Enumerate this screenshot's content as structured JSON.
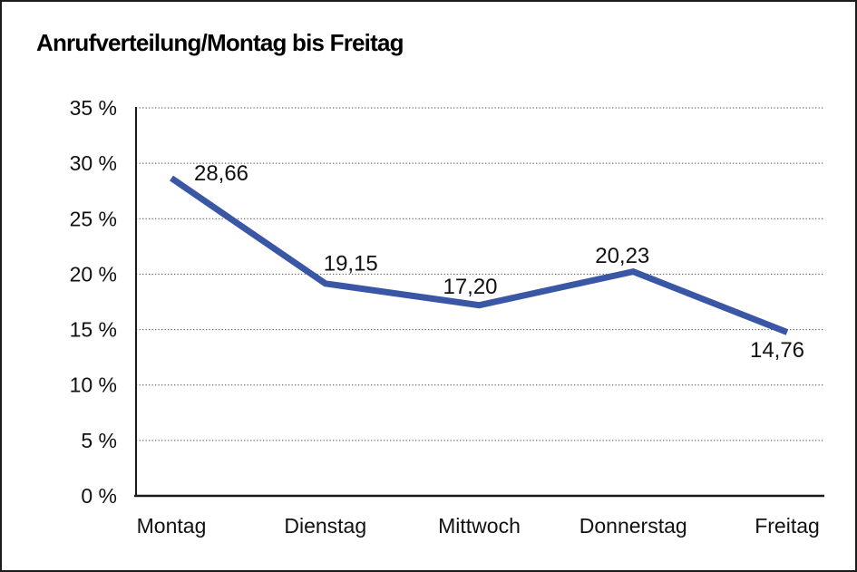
{
  "page": {
    "title": "Anrufverteilung/Montag bis Freitag"
  },
  "chart_data": {
    "type": "line",
    "title": "Anrufverteilung/Montag bis Freitag",
    "categories": [
      "Montag",
      "Dienstag",
      "Mittwoch",
      "Donnerstag",
      "Freitag"
    ],
    "series": [
      {
        "name": "Anrufverteilung",
        "values": [
          28.66,
          19.15,
          17.2,
          20.23,
          14.76
        ],
        "data_labels": [
          "28,66",
          "19,15",
          "17,20",
          "20,23",
          "14,76"
        ]
      }
    ],
    "xlabel": "",
    "ylabel": "",
    "ylim": [
      0,
      35
    ],
    "ytick_step": 5,
    "ytick_labels": [
      "0 %",
      "5 %",
      "10 %",
      "15 %",
      "20 %",
      "25 %",
      "30 %",
      "35 %"
    ],
    "grid": "horizontal-dotted",
    "legend_position": "none",
    "colors": {
      "line": "#3A57A6",
      "axis": "#1b1b1b",
      "gridline": "#4a4a4a",
      "text": "#111111",
      "background": "#ffffff"
    }
  }
}
